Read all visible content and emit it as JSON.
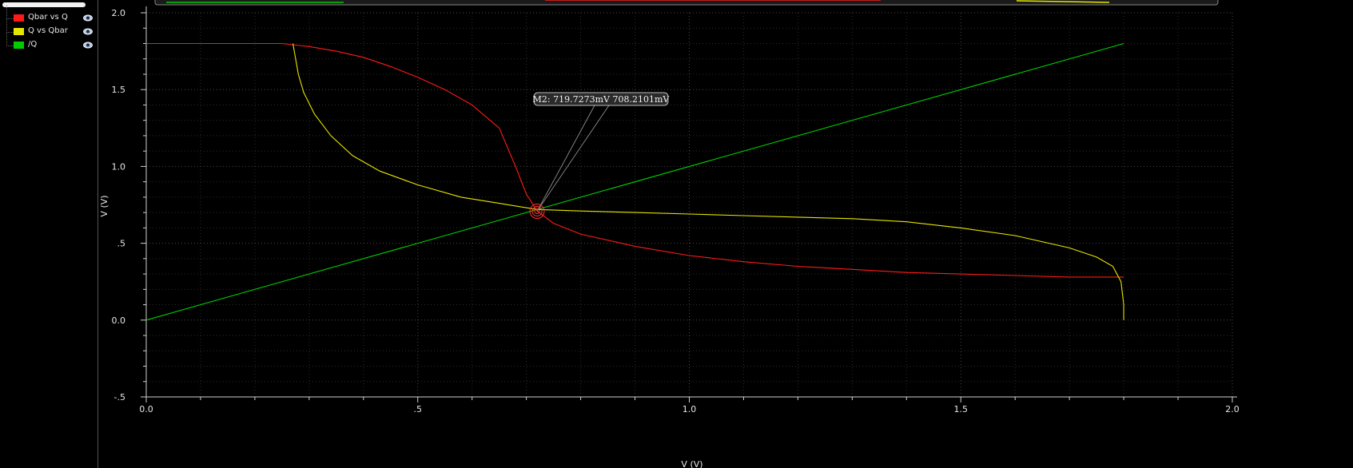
{
  "legend": {
    "items": [
      {
        "label": "Qbar vs Q",
        "color": "#ff1a1a",
        "icon": "eye-icon"
      },
      {
        "label": "Q vs Qbar",
        "color": "#e6e600",
        "icon": "eye-icon"
      },
      {
        "label": "/Q",
        "color": "#00cc00",
        "icon": "eye-icon"
      }
    ]
  },
  "marker": {
    "label": "M2: 719.7273mV 708.2101mV",
    "x": 0.7197,
    "y": 0.7082
  },
  "chart_data": {
    "type": "line",
    "xlabel": "V (V)",
    "ylabel": "V (V)",
    "xlim": [
      0.0,
      2.0
    ],
    "ylim": [
      -0.5,
      2.0
    ],
    "x_ticks": [
      "0.0",
      ".5",
      "1.0",
      "1.5",
      "2.0"
    ],
    "y_ticks": [
      "-.5",
      "0.0",
      ".5",
      "1.0",
      "1.5",
      "2.0"
    ],
    "grid": true,
    "series": [
      {
        "name": "Qbar vs Q",
        "color": "#ff1a1a",
        "x": [
          0.0,
          0.1,
          0.2,
          0.25,
          0.3,
          0.35,
          0.4,
          0.45,
          0.5,
          0.55,
          0.6,
          0.65,
          0.68,
          0.7,
          0.72,
          0.75,
          0.8,
          0.9,
          1.0,
          1.1,
          1.2,
          1.3,
          1.4,
          1.5,
          1.6,
          1.7,
          1.8
        ],
        "y": [
          1.8,
          1.8,
          1.8,
          1.8,
          1.78,
          1.75,
          1.71,
          1.65,
          1.58,
          1.5,
          1.4,
          1.25,
          1.0,
          0.82,
          0.71,
          0.63,
          0.56,
          0.48,
          0.42,
          0.38,
          0.35,
          0.33,
          0.31,
          0.3,
          0.29,
          0.28,
          0.28
        ]
      },
      {
        "name": "Q vs Qbar",
        "color": "#e6e600",
        "x": [
          0.27,
          0.275,
          0.28,
          0.29,
          0.31,
          0.34,
          0.38,
          0.43,
          0.5,
          0.58,
          0.65,
          0.72,
          0.8,
          0.9,
          1.0,
          1.1,
          1.2,
          1.3,
          1.4,
          1.5,
          1.6,
          1.7,
          1.75,
          1.78,
          1.795,
          1.8,
          1.8
        ],
        "y": [
          1.8,
          1.7,
          1.6,
          1.48,
          1.34,
          1.2,
          1.07,
          0.97,
          0.88,
          0.8,
          0.76,
          0.72,
          0.71,
          0.7,
          0.69,
          0.68,
          0.67,
          0.66,
          0.64,
          0.6,
          0.55,
          0.47,
          0.41,
          0.35,
          0.25,
          0.1,
          0.0
        ]
      },
      {
        "name": "/Q",
        "color": "#00cc00",
        "x": [
          0.0,
          1.8
        ],
        "y": [
          0.0,
          1.8
        ]
      }
    ]
  }
}
